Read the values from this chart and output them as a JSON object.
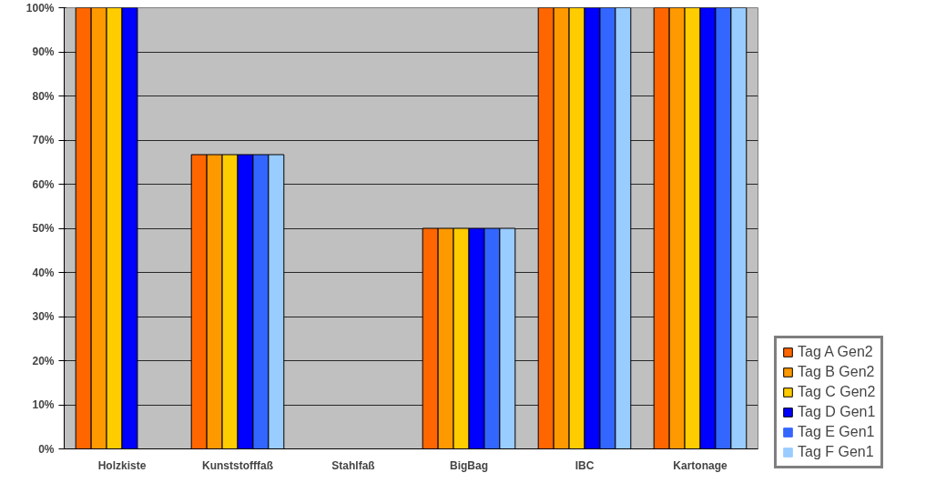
{
  "chart_data": {
    "type": "bar",
    "categories": [
      "Holzkiste",
      "Kunststofffaß",
      "Stahlfaß",
      "BigBag",
      "IBC",
      "Kartonage"
    ],
    "series": [
      {
        "name": "Tag A Gen2",
        "color": "#ff6600",
        "values": [
          100,
          66.7,
          0,
          50,
          100,
          100
        ]
      },
      {
        "name": "Tag B Gen2",
        "color": "#ff9900",
        "values": [
          100,
          66.7,
          0,
          50,
          100,
          100
        ]
      },
      {
        "name": "Tag C Gen2",
        "color": "#ffcc00",
        "values": [
          100,
          66.7,
          0,
          50,
          100,
          100
        ]
      },
      {
        "name": "Tag D Gen1",
        "color": "#0000ff",
        "values": [
          100,
          66.7,
          0,
          50,
          100,
          100
        ]
      },
      {
        "name": "Tag E Gen1",
        "color": "#3366ff",
        "values": [
          0,
          66.7,
          0,
          50,
          100,
          100
        ]
      },
      {
        "name": "Tag F Gen1",
        "color": "#99ccff",
        "values": [
          0,
          66.7,
          0,
          50,
          100,
          100
        ]
      }
    ],
    "ylim": [
      0,
      100
    ],
    "yticks": [
      {
        "value": 0,
        "label": "0%"
      },
      {
        "value": 10,
        "label": "10%"
      },
      {
        "value": 20,
        "label": "20%"
      },
      {
        "value": 30,
        "label": "30%"
      },
      {
        "value": 40,
        "label": "40%"
      },
      {
        "value": 50,
        "label": "50%"
      },
      {
        "value": 60,
        "label": "60%"
      },
      {
        "value": 70,
        "label": "70%"
      },
      {
        "value": 80,
        "label": "80%"
      },
      {
        "value": 90,
        "label": "90%"
      },
      {
        "value": 100,
        "label": "100%"
      }
    ],
    "grid": "y",
    "legend": "right"
  }
}
